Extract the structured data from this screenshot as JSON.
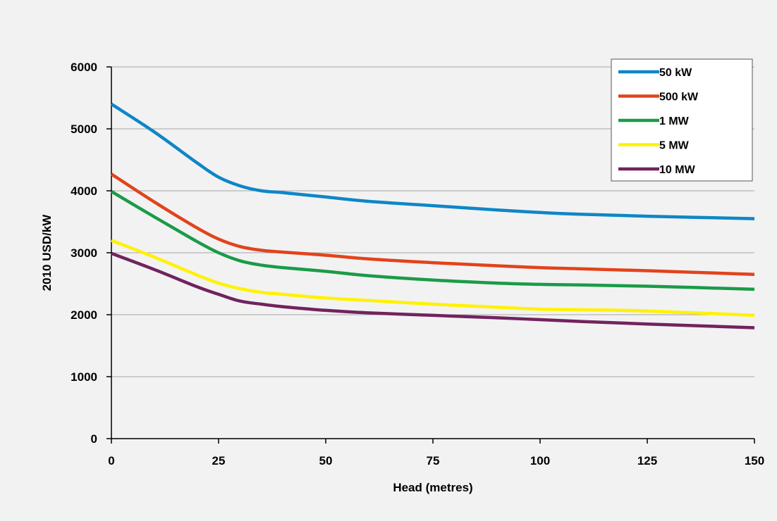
{
  "chart_data": {
    "type": "line",
    "title": "",
    "xlabel": "Head (metres)",
    "ylabel": "2010 USD/kW",
    "xlim": [
      0,
      150
    ],
    "ylim": [
      0,
      6000
    ],
    "xticks": [
      0,
      25,
      50,
      75,
      100,
      125,
      150
    ],
    "yticks": [
      0,
      1000,
      2000,
      3000,
      4000,
      5000,
      6000
    ],
    "grid": "horizontal",
    "legend_position": "top-right",
    "x": [
      0,
      10,
      20,
      25,
      30,
      35,
      40,
      50,
      60,
      75,
      90,
      100,
      110,
      125,
      150
    ],
    "series": [
      {
        "name": "50 kW",
        "color": "#0e86c7",
        "values": [
          5400,
          4950,
          4450,
          4220,
          4080,
          4000,
          3970,
          3900,
          3830,
          3760,
          3690,
          3650,
          3620,
          3590,
          3550
        ]
      },
      {
        "name": "500 kW",
        "color": "#e2431c",
        "values": [
          4270,
          3820,
          3400,
          3220,
          3100,
          3040,
          3010,
          2960,
          2900,
          2840,
          2790,
          2760,
          2740,
          2710,
          2650
        ]
      },
      {
        "name": "1 MW",
        "color": "#1a9b48",
        "values": [
          3990,
          3580,
          3180,
          3000,
          2870,
          2800,
          2760,
          2700,
          2630,
          2560,
          2510,
          2490,
          2480,
          2460,
          2410
        ]
      },
      {
        "name": "5 MW",
        "color": "#fff200",
        "values": [
          3200,
          2930,
          2640,
          2510,
          2420,
          2360,
          2330,
          2270,
          2230,
          2170,
          2120,
          2090,
          2080,
          2060,
          1990
        ]
      },
      {
        "name": "10 MW",
        "color": "#71235e",
        "values": [
          2990,
          2730,
          2450,
          2330,
          2220,
          2170,
          2130,
          2070,
          2030,
          1990,
          1950,
          1920,
          1890,
          1850,
          1790
        ]
      }
    ]
  }
}
